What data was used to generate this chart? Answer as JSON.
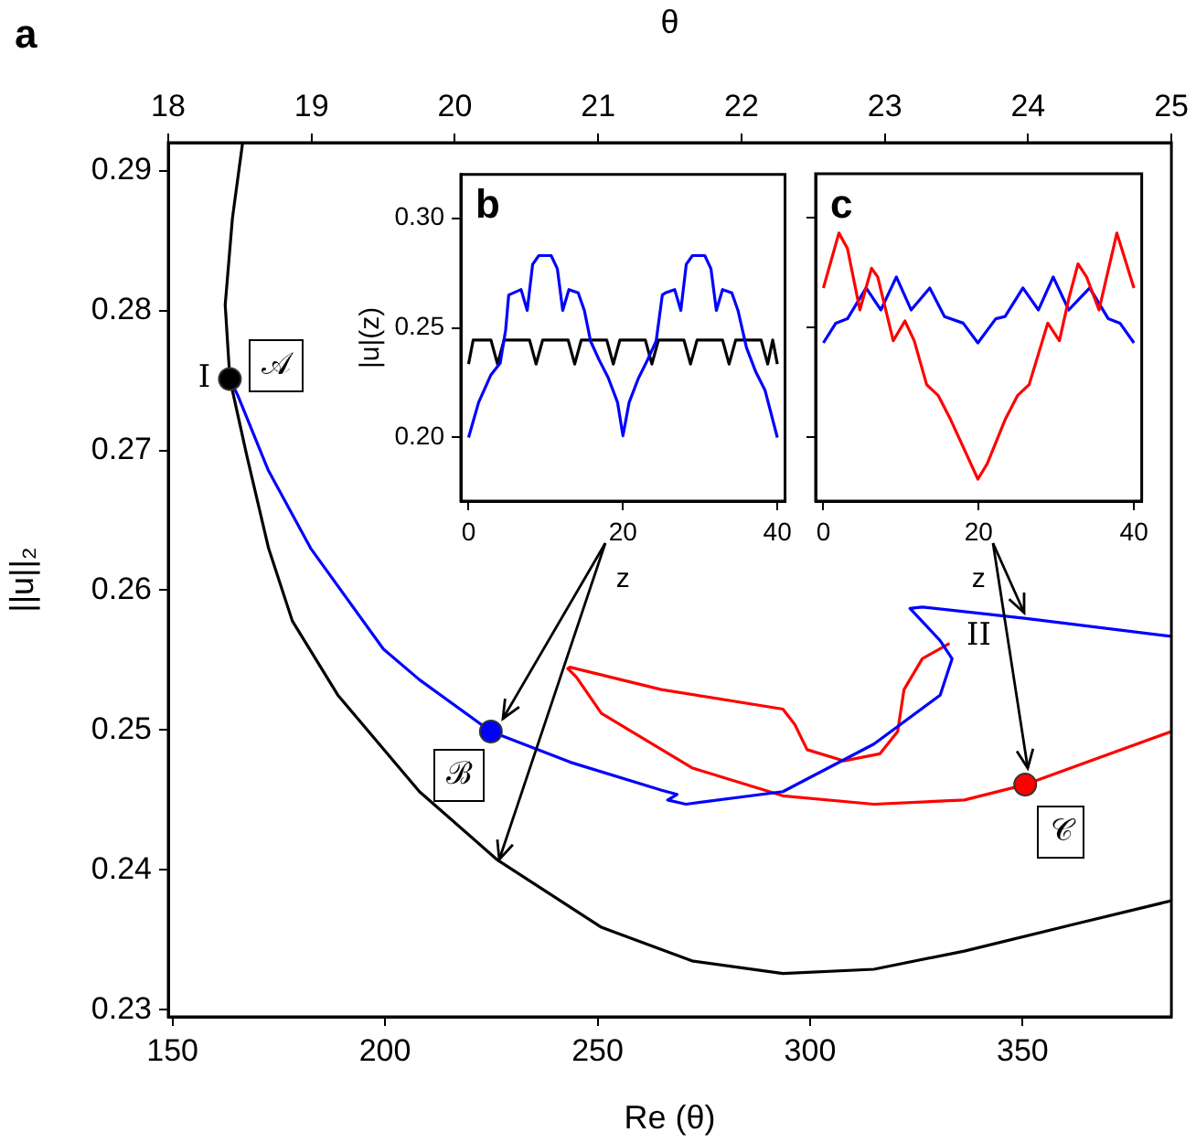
{
  "chart_data": [
    {
      "type": "line",
      "xlabel": "Re (θ)",
      "x2label": "θ",
      "ylabel": "||u||₂",
      "xlim": [
        149,
        385
      ],
      "xticks": [
        150,
        200,
        250,
        300,
        350
      ],
      "x2lim": [
        18,
        25
      ],
      "x2ticks": [
        18,
        19,
        20,
        21,
        22,
        23,
        24,
        25
      ],
      "ylim": [
        0.2295,
        0.292
      ],
      "yticks": [
        0.23,
        0.24,
        0.25,
        0.26,
        0.27,
        0.28,
        0.29
      ],
      "grid": false,
      "legend": false,
      "marker": "none",
      "annotations": [
        "a",
        {
          "text": "I",
          "x": 163.5,
          "y": 0.2751
        },
        {
          "text": "II",
          "x": 332.8,
          "y": 0.2562
        },
        {
          "text": "𝒜",
          "x": 174.4,
          "y": 0.2761
        },
        {
          "text": "ℬ",
          "x": 217.4,
          "y": 0.2468
        },
        {
          "text": "𝒞",
          "x": 359.1,
          "y": 0.2427
        }
      ],
      "series": [
        {
          "color": "#000000",
          "x": [
            166.5,
            164.1,
            162.4,
            163.5,
            167.5,
            172.6,
            178.2,
            188.9,
            208.1,
            226.5,
            250.9,
            272.2,
            293.6,
            315,
            336.3,
            361.9,
            385
          ],
          "values": [
            0.292,
            0.2866,
            0.2804,
            0.2751,
            0.2696,
            0.263,
            0.2578,
            0.2525,
            0.2456,
            0.2407,
            0.2359,
            0.2335,
            0.2326,
            0.2329,
            0.2342,
            0.2361,
            0.2378
          ]
        },
        {
          "color": "#0000ff",
          "x": [
            163.5,
            165.4,
            172.5,
            182.5,
            199.6,
            208.1,
            224.9,
            243.6,
            265.1,
            268.7,
            266.5,
            270.8,
            293.6,
            315,
            330.6,
            333.4,
            330.6,
            323.5,
            326.4,
            350.4,
            385
          ],
          "values": [
            0.2751,
            0.2739,
            0.2686,
            0.263,
            0.2558,
            0.2536,
            0.2499,
            0.2477,
            0.2457,
            0.2454,
            0.245,
            0.2447,
            0.2456,
            0.249,
            0.2525,
            0.2551,
            0.2564,
            0.2587,
            0.2588,
            0.258,
            0.2567
          ]
        },
        {
          "color": "#ff0000",
          "x": [
            332.8,
            326.4,
            322.1,
            320.6,
            316.4,
            307.9,
            299.3,
            296.4,
            293.6,
            265,
            243.5,
            243,
            245,
            250.9,
            272.2,
            293.6,
            315,
            336.3,
            350.6,
            385
          ],
          "values": [
            0.2562,
            0.2551,
            0.2529,
            0.2499,
            0.2483,
            0.2478,
            0.2486,
            0.2504,
            0.2515,
            0.2529,
            0.2545,
            0.2544,
            0.2538,
            0.2512,
            0.2473,
            0.2453,
            0.2447,
            0.245,
            0.2461,
            0.2499
          ]
        },
        {
          "type": "scatter",
          "marker": "circle",
          "colors": [
            "#000000",
            "#0000ff",
            "#ff0000"
          ],
          "x": [
            163.5,
            224.9,
            350.6
          ],
          "values": [
            0.2751,
            0.2499,
            0.2461
          ]
        }
      ]
    },
    {
      "type": "line",
      "xlabel": "z",
      "ylabel": "|u|(z)",
      "xlim": [
        -1,
        41
      ],
      "xticks": [
        0,
        20,
        40
      ],
      "ylim": [
        0.171,
        0.32
      ],
      "yticks": [
        {
          "value": 0.2,
          "label": "0.20"
        },
        {
          "value": 0.25,
          "label": "0.25"
        },
        {
          "value": 0.3,
          "label": "0.30"
        }
      ],
      "grid": false,
      "legend": false,
      "marker": "none",
      "annotations": [
        "b"
      ],
      "series": [
        {
          "color": "#0000ff",
          "x": [
            0,
            1.3,
            2.9,
            4.1,
            4.8,
            5.2,
            6.8,
            7.6,
            8.3,
            9.1,
            10.7,
            11.5,
            12.2,
            13,
            14.2,
            15,
            15.8,
            16.9,
            18.1,
            19.3,
            20,
            20.8,
            22,
            23.2,
            24.3,
            25.1,
            25.5,
            26.7,
            27.5,
            28.2,
            29,
            30.6,
            31.4,
            32.1,
            32.9,
            34.1,
            34.9,
            36,
            37.2,
            38.4,
            40
          ],
          "values": [
            0.2,
            0.216,
            0.2286,
            0.234,
            0.249,
            0.265,
            0.2675,
            0.258,
            0.279,
            0.283,
            0.283,
            0.277,
            0.258,
            0.2675,
            0.266,
            0.258,
            0.244,
            0.2355,
            0.2272,
            0.216,
            0.2008,
            0.216,
            0.227,
            0.2355,
            0.244,
            0.265,
            0.266,
            0.2675,
            0.258,
            0.279,
            0.283,
            0.283,
            0.277,
            0.258,
            0.2675,
            0.266,
            0.258,
            0.241,
            0.23,
            0.2216,
            0.2
          ]
        },
        {
          "color": "#000000",
          "x": [
            0,
            0.6,
            2.9,
            3.75,
            4.6,
            5.6,
            7.9,
            8.75,
            9.6,
            10.6,
            12.9,
            13.75,
            14.6,
            15.6,
            17.9,
            18.75,
            19.6,
            20.6,
            22.9,
            23.75,
            24.6,
            25.6,
            27.9,
            28.75,
            29.6,
            30.6,
            32.9,
            33.75,
            34.6,
            35.6,
            37.9,
            38.75,
            39.4,
            40
          ],
          "values": [
            0.2335,
            0.2445,
            0.2445,
            0.2335,
            0.2445,
            0.2445,
            0.2445,
            0.2335,
            0.2445,
            0.2445,
            0.2445,
            0.2335,
            0.2445,
            0.2445,
            0.2445,
            0.2335,
            0.2445,
            0.2445,
            0.2445,
            0.2335,
            0.2445,
            0.2445,
            0.2445,
            0.2335,
            0.2445,
            0.2445,
            0.2445,
            0.2335,
            0.2445,
            0.2445,
            0.2445,
            0.2335,
            0.2445,
            0.2335
          ]
        }
      ]
    },
    {
      "type": "line",
      "xlabel": "z",
      "xlim": [
        -1,
        41
      ],
      "xticks": [
        0,
        20,
        40
      ],
      "ylim": [
        0.171,
        0.32
      ],
      "yticks": [
        {
          "value": 0.2,
          "label": null
        },
        {
          "value": 0.25,
          "label": null
        },
        {
          "value": 0.3,
          "label": null
        }
      ],
      "tick_labels": "x",
      "grid": false,
      "legend": false,
      "marker": "none",
      "annotations": [
        "c"
      ],
      "series": [
        {
          "color": "#ff0000",
          "x": [
            0,
            2,
            3.1,
            4.7,
            6.2,
            7,
            9,
            10.5,
            11.7,
            13.3,
            14.8,
            16.4,
            19.9,
            21.1,
            23.4,
            25,
            26.5,
            28.9,
            30.4,
            31.6,
            32.8,
            33.9,
            35.5,
            37.8,
            40
          ],
          "values": [
            0.268,
            0.293,
            0.286,
            0.258,
            0.277,
            0.273,
            0.244,
            0.253,
            0.244,
            0.224,
            0.219,
            0.208,
            0.181,
            0.188,
            0.208,
            0.219,
            0.224,
            0.252,
            0.244,
            0.263,
            0.279,
            0.273,
            0.258,
            0.293,
            0.268
          ]
        },
        {
          "color": "#0000ff",
          "x": [
            0,
            1.6,
            3.1,
            5.5,
            7.4,
            9.4,
            11.3,
            13.7,
            15.6,
            18,
            19.9,
            22.2,
            23.4,
            25.7,
            27.7,
            29.6,
            31.6,
            34.3,
            36.7,
            38.2,
            40
          ],
          "values": [
            0.243,
            0.252,
            0.254,
            0.268,
            0.258,
            0.273,
            0.258,
            0.268,
            0.255,
            0.252,
            0.243,
            0.254,
            0.255,
            0.268,
            0.258,
            0.273,
            0.258,
            0.268,
            0.254,
            0.252,
            0.243
          ]
        }
      ]
    }
  ]
}
